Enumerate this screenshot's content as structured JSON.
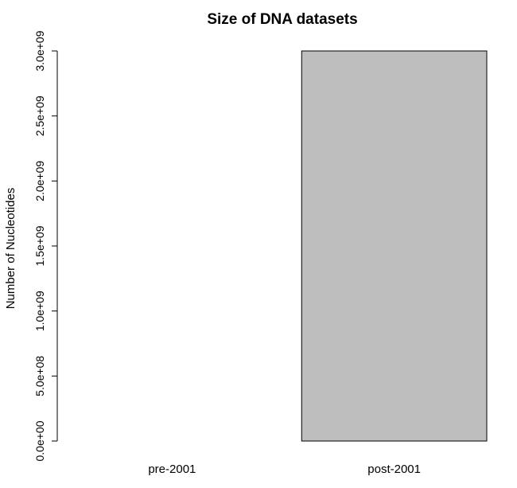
{
  "chart_data": {
    "type": "bar",
    "title": "Size of DNA datasets",
    "xlabel": "",
    "ylabel": "Number of Nucleotides",
    "categories": [
      "pre-2001",
      "post-2001"
    ],
    "values": [
      0,
      3000000000
    ],
    "ylim": [
      0,
      3000000000
    ],
    "yticks": [
      0,
      500000000,
      1000000000,
      1500000000,
      2000000000,
      2500000000,
      3000000000
    ],
    "ytick_labels": [
      "0.0e+00",
      "5.0e+08",
      "1.0e+09",
      "1.5e+09",
      "2.0e+09",
      "2.5e+09",
      "3.0e+09"
    ],
    "bar_color": "#bebebe",
    "grid": false
  }
}
